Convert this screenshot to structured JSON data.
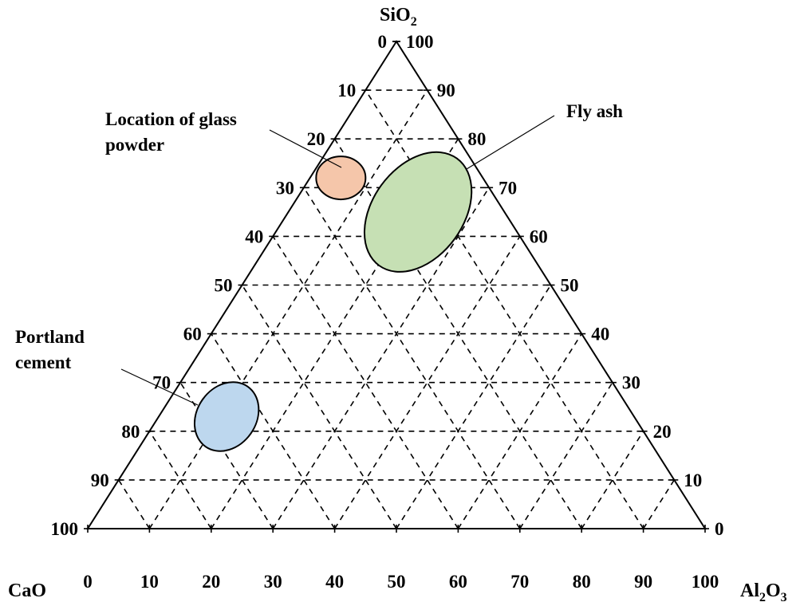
{
  "chart_data": {
    "type": "ternary",
    "axes": {
      "top": {
        "label": "SiO",
        "sub": "2"
      },
      "left": {
        "label": "CaO",
        "sub": ""
      },
      "right": {
        "label": "Al",
        "sub": "2",
        "label_tail": "O",
        "sub_tail": "3"
      }
    },
    "grid": true,
    "grid_step": 10,
    "ticks": {
      "left_edge": [
        "0",
        "10",
        "20",
        "30",
        "40",
        "50",
        "60",
        "70",
        "80",
        "90",
        "100"
      ],
      "right_edge": [
        "100",
        "90",
        "80",
        "70",
        "60",
        "50",
        "40",
        "30",
        "20",
        "10",
        "0"
      ],
      "bottom_edge": [
        "0",
        "10",
        "20",
        "30",
        "40",
        "50",
        "60",
        "70",
        "80",
        "90",
        "100"
      ]
    },
    "regions": [
      {
        "name": "Location of glass powder",
        "label_lines": [
          "Location of glass",
          "powder"
        ],
        "color": "#f5c6aa",
        "center": {
          "SiO2": 72,
          "CaO": 23,
          "Al2O3": 5
        },
        "rx": 31,
        "ry": 27,
        "rotation_deg": 0
      },
      {
        "name": "Fly ash",
        "label_lines": [
          "Fly ash"
        ],
        "color": "#c6e0b4",
        "center": {
          "SiO2": 65,
          "CaO": 14,
          "Al2O3": 21
        },
        "rx": 83,
        "ry": 57,
        "rotation_deg": -54
      },
      {
        "name": "Portland cement",
        "label_lines": [
          "Portland",
          "cement"
        ],
        "color": "#bdd7ee",
        "center": {
          "SiO2": 23,
          "CaO": 66,
          "Al2O3": 11
        },
        "rx": 37,
        "ry": 46,
        "rotation_deg": 35
      }
    ]
  }
}
